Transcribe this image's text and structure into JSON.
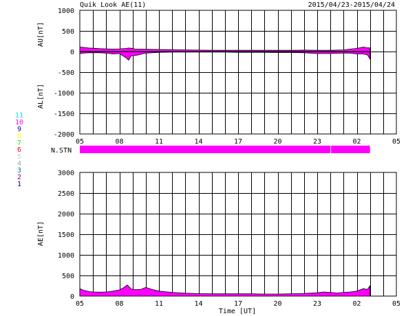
{
  "header": {
    "title": "Quik Look AE(11)",
    "date_range": "2015/04/23-2015/04/24"
  },
  "legend": {
    "items": [
      {
        "label": "11",
        "color": "#00e8e8"
      },
      {
        "label": "10",
        "color": "#ff00ff"
      },
      {
        "label": "9",
        "color": "#0000c0"
      },
      {
        "label": "8",
        "color": "#ffff00"
      },
      {
        "label": "7",
        "color": "#00ff00"
      },
      {
        "label": "6",
        "color": "#ff0000"
      },
      {
        "label": "5",
        "color": "#d0d0d0"
      },
      {
        "label": "4",
        "color": "#a0a0a0"
      },
      {
        "label": "3",
        "color": "#008080"
      },
      {
        "label": "2",
        "color": "#800080"
      },
      {
        "label": "1",
        "color": "#000080"
      }
    ]
  },
  "chart_data": [
    {
      "type": "area",
      "ylabel_top": "AU[nT]",
      "ylabel_bottom": "AL[nT]",
      "ylim": [
        -2000,
        1000
      ],
      "yticks": [
        1000,
        500,
        0,
        -500,
        -1000,
        -1500,
        -2000
      ],
      "x_ticks": [
        "05",
        "08",
        "11",
        "14",
        "17",
        "20",
        "23",
        "02",
        "05"
      ],
      "xlim_hours": [
        0,
        24
      ],
      "grid": true,
      "fill_color": "#ff00ff",
      "series": [
        {
          "x": [
            0,
            0.3,
            0.7,
            1,
            1.5,
            2,
            2.5,
            3,
            3.5,
            3.7,
            3.9,
            4.2,
            5,
            6,
            7,
            8,
            9,
            10,
            11,
            12,
            13,
            14,
            15,
            16,
            17,
            18,
            19,
            20,
            20.5,
            21,
            21.5,
            21.8,
            22
          ],
          "values": [
            110,
            100,
            85,
            80,
            70,
            65,
            60,
            65,
            75,
            85,
            80,
            60,
            55,
            50,
            45,
            40,
            35,
            30,
            30,
            30,
            30,
            30,
            30,
            30,
            35,
            30,
            30,
            40,
            60,
            75,
            110,
            90,
            90
          ]
        },
        {
          "x": [
            0,
            0.3,
            0.7,
            1,
            1.5,
            2,
            2.5,
            3,
            3.5,
            3.7,
            3.9,
            4.2,
            5,
            6,
            7,
            8,
            9,
            10,
            11,
            12,
            13,
            14,
            15,
            16,
            17,
            18,
            19,
            20,
            20.5,
            21,
            21.5,
            21.8,
            22
          ],
          "values": [
            -50,
            -40,
            -30,
            -30,
            -30,
            -40,
            -60,
            -50,
            -150,
            -210,
            -100,
            -100,
            -40,
            -20,
            -15,
            -15,
            -15,
            -15,
            -15,
            -20,
            -20,
            -20,
            -25,
            -25,
            -30,
            -50,
            -50,
            -40,
            -40,
            -60,
            -60,
            -80,
            -180
          ]
        }
      ]
    },
    {
      "type": "area",
      "ylabel": "AE[nT]",
      "xlabel": "Time [UT]",
      "ylim": [
        0,
        3000
      ],
      "yticks": [
        3000,
        2500,
        2000,
        1500,
        1000,
        500,
        0
      ],
      "x_ticks": [
        "05",
        "08",
        "11",
        "14",
        "17",
        "20",
        "23",
        "02",
        "05"
      ],
      "xlim_hours": [
        0,
        24
      ],
      "grid": true,
      "fill_color": "#ff00ff",
      "series": [
        {
          "x": [
            0,
            0.3,
            0.7,
            1,
            1.5,
            2,
            2.5,
            3,
            3.3,
            3.6,
            3.9,
            4.2,
            4.6,
            5,
            5.5,
            6,
            7,
            8,
            9,
            10,
            11,
            12,
            13,
            14,
            15,
            16,
            17,
            18,
            18.5,
            19,
            19.5,
            20,
            20.5,
            21,
            21.5,
            21.8,
            22
          ],
          "values": [
            180,
            140,
            110,
            100,
            95,
            100,
            120,
            150,
            200,
            270,
            170,
            160,
            160,
            210,
            160,
            120,
            90,
            70,
            60,
            55,
            55,
            55,
            55,
            50,
            50,
            55,
            65,
            80,
            100,
            90,
            75,
            90,
            100,
            120,
            180,
            160,
            250
          ]
        }
      ]
    }
  ],
  "station_bar": {
    "label": "N.STN",
    "segments": [
      {
        "start_hour": 0,
        "end_hour": 19
      },
      {
        "start_hour": 19.05,
        "end_hour": 22
      }
    ]
  }
}
